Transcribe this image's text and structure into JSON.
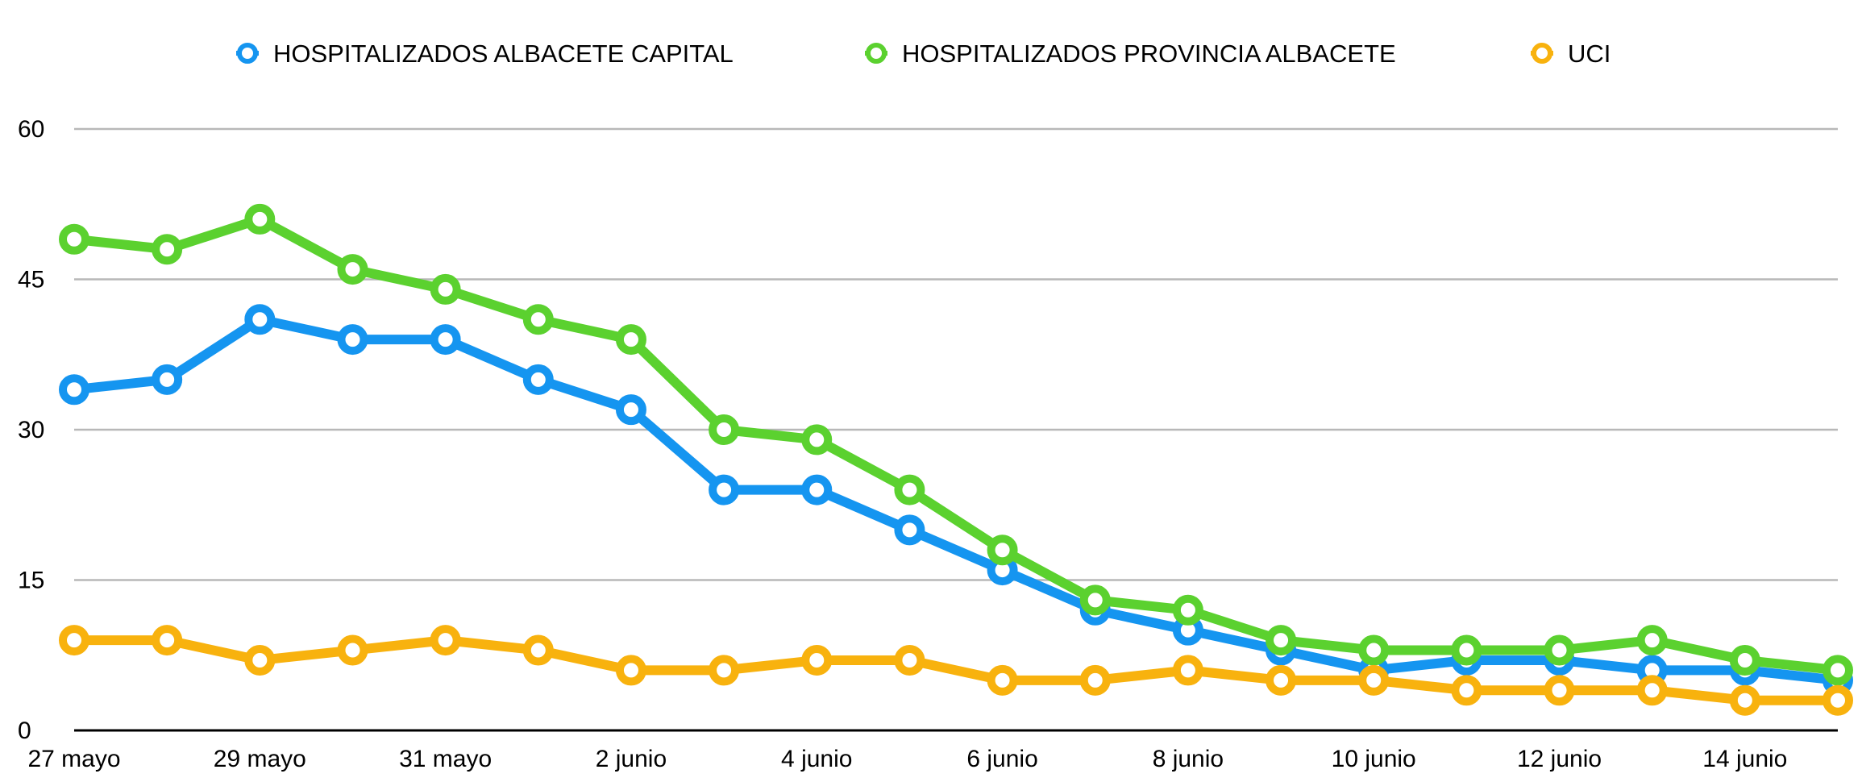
{
  "chart_data": {
    "type": "line",
    "title": "",
    "xlabel": "",
    "ylabel": "",
    "ylim": [
      0,
      60
    ],
    "y_ticks": [
      "0",
      "15",
      "30",
      "45",
      "60"
    ],
    "x_tick_labels": [
      "27 mayo",
      "29 mayo",
      "31 mayo",
      "2 junio",
      "4 junio",
      "6 junio",
      "8 junio",
      "10 junio",
      "12 junio",
      "14 junio"
    ],
    "categories": [
      "27 mayo",
      "28 mayo",
      "29 mayo",
      "30 mayo",
      "31 mayo",
      "1 junio",
      "2 junio",
      "3 junio",
      "4 junio",
      "5 junio",
      "6 junio",
      "7 junio",
      "8 junio",
      "9 junio",
      "10 junio",
      "11 junio",
      "12 junio",
      "13 junio",
      "14 junio",
      "15 junio"
    ],
    "grid": true,
    "legend_position": "top",
    "series": [
      {
        "name": "HOSPITALIZADOS ALBACETE CAPITAL",
        "color": "#1595f0",
        "values": [
          34,
          35,
          41,
          39,
          39,
          35,
          32,
          24,
          24,
          20,
          16,
          12,
          10,
          8,
          6,
          7,
          7,
          6,
          6,
          5
        ]
      },
      {
        "name": "HOSPITALIZADOS PROVINCIA ALBACETE",
        "color": "#5bd12f",
        "values": [
          49,
          48,
          51,
          46,
          44,
          41,
          39,
          30,
          29,
          24,
          18,
          13,
          12,
          9,
          8,
          8,
          8,
          9,
          7,
          6
        ]
      },
      {
        "name": "UCI",
        "color": "#f8b20e",
        "values": [
          9,
          9,
          7,
          8,
          9,
          8,
          6,
          6,
          7,
          7,
          5,
          5,
          6,
          5,
          5,
          4,
          4,
          4,
          3,
          3
        ]
      }
    ]
  }
}
